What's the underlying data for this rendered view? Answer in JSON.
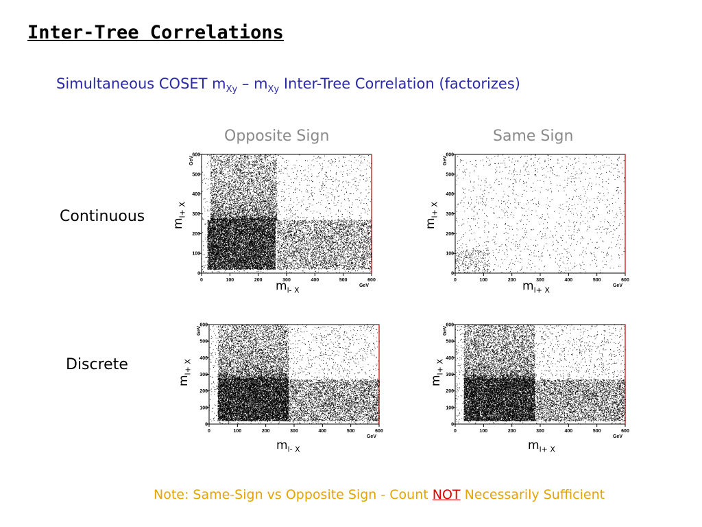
{
  "title": "Inter-Tree Correlations",
  "subtitle": {
    "prefix": "Simultaneous COSET m",
    "sub1": "Xy",
    "dash": " – m",
    "sub2": "Xy",
    "suffix": " Inter-Tree Correlation (factorizes)"
  },
  "columns": [
    "Opposite Sign",
    "Same Sign"
  ],
  "rows": [
    "Continuous",
    "Discrete"
  ],
  "note": {
    "prefix": "Note: Same-Sign vs Opposite Sign - Count ",
    "emphasis": "NOT",
    "suffix": " Necessarily Sufficient"
  },
  "colors": {
    "subtitle": "#2a2aa8",
    "note": "#e6a400",
    "emphasis": "#e00000",
    "frame_right": "#d03030"
  },
  "chart_data": [
    {
      "id": "continuous-opposite",
      "type": "scatter",
      "x_label": {
        "main": "m",
        "sub": "l- X"
      },
      "y_label": {
        "main": "m",
        "sub": "l+ X"
      },
      "x_ticks": [
        "0",
        "100",
        "200",
        "300",
        "400",
        "500",
        "600"
      ],
      "y_ticks": [
        "0",
        "100",
        "200",
        "300",
        "400",
        "500",
        "600"
      ],
      "x_unit": "GeV",
      "y_unit": "GeV",
      "xlim": [
        0,
        600
      ],
      "ylim": [
        0,
        600
      ],
      "density": "dense block x 20-260, y 20-270 with vertical band to y 600 and horizontal band to x 600",
      "dist": {
        "core": [
          20,
          260,
          20,
          270
        ],
        "xmin": 30,
        "cut": 265,
        "ymax": 600,
        "n_core": 11000,
        "n_vband": 4200,
        "n_hband": 3800,
        "n_bg": 1800
      }
    },
    {
      "id": "continuous-same",
      "type": "scatter",
      "x_label": {
        "main": "m",
        "sub": "l+ X"
      },
      "y_label": {
        "main": "m",
        "sub": "l+ X"
      },
      "x_ticks": [
        "0",
        "100",
        "200",
        "300",
        "400",
        "500",
        "600"
      ],
      "y_ticks": [
        "0",
        "100",
        "200",
        "300",
        "400",
        "500",
        "600"
      ],
      "x_unit": "GeV",
      "y_unit": "GeV",
      "xlim": [
        0,
        600
      ],
      "ylim": [
        0,
        600
      ],
      "density": "sparse uniform scatter, slightly denser near origin",
      "dist": {
        "core": [
          0,
          120,
          0,
          120
        ],
        "xmin": 0,
        "cut": 0,
        "ymax": 600,
        "n_core": 250,
        "n_vband": 0,
        "n_hband": 0,
        "n_bg": 1300
      }
    },
    {
      "id": "discrete-opposite",
      "type": "scatter",
      "x_label": {
        "main": "m",
        "sub": "l- X"
      },
      "y_label": {
        "main": "m",
        "sub": "l+ X"
      },
      "x_ticks": [
        "0",
        "100",
        "200",
        "300",
        "400",
        "500",
        "600"
      ],
      "y_ticks": [
        "0",
        "100",
        "200",
        "300",
        "400",
        "500",
        "600"
      ],
      "x_unit": "GeV",
      "y_unit": "GeV",
      "xlim": [
        0,
        600
      ],
      "ylim": [
        0,
        600
      ],
      "density": "dense block x 30-280, y 20-270 with vertical and horizontal bands",
      "dist": {
        "core": [
          30,
          280,
          20,
          270
        ],
        "xmin": 30,
        "cut": 280,
        "ymax": 600,
        "n_core": 11000,
        "n_vband": 4200,
        "n_hband": 3800,
        "n_bg": 2000
      }
    },
    {
      "id": "discrete-same",
      "type": "scatter",
      "x_label": {
        "main": "m",
        "sub": "l+ X"
      },
      "y_label": {
        "main": "m",
        "sub": "l+ X"
      },
      "x_ticks": [
        "0",
        "100",
        "200",
        "300",
        "400",
        "500",
        "600"
      ],
      "y_ticks": [
        "0",
        "100",
        "200",
        "300",
        "400",
        "500",
        "600"
      ],
      "x_unit": "GeV",
      "y_unit": "GeV",
      "xlim": [
        0,
        600
      ],
      "ylim": [
        0,
        600
      ],
      "density": "dense block x 30-280, y 20-270 with vertical and horizontal bands",
      "dist": {
        "core": [
          30,
          280,
          20,
          270
        ],
        "xmin": 30,
        "cut": 280,
        "ymax": 600,
        "n_core": 11000,
        "n_vband": 4200,
        "n_hband": 3800,
        "n_bg": 2000
      }
    }
  ]
}
